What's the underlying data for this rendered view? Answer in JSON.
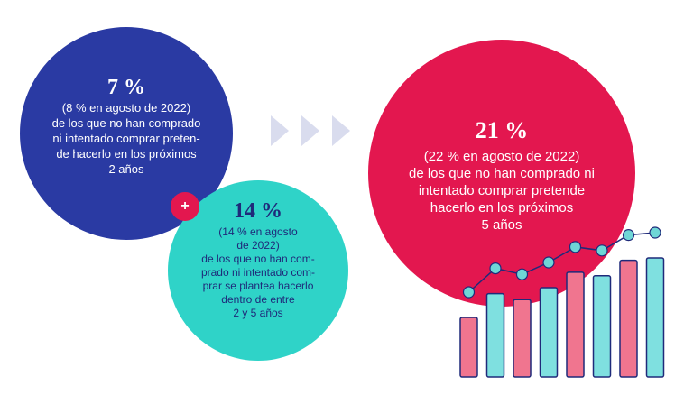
{
  "blue": {
    "pct": "7 %",
    "lines": [
      "(8 % en agosto de 2022)",
      "de los que no han comprado",
      "ni intentado comprar preten-",
      "de hacerlo en los próximos",
      "2 años"
    ],
    "color": "#2a3aa3"
  },
  "teal": {
    "pct": "14 %",
    "lines": [
      "(14 % en agosto",
      "de 2022)",
      "de los que no han com-",
      "prado ni intentado com-",
      "prar se plantea hacerlo",
      "dentro de entre",
      "2 y 5 años"
    ],
    "color": "#2fd3c8"
  },
  "pink": {
    "pct": "21 %",
    "lines": [
      "(22 % en agosto de 2022)",
      "de los que no han comprado ni",
      "intentado comprar pretende",
      "hacerlo en los próximos",
      "5 años"
    ],
    "color": "#e3174f"
  },
  "plus_symbol": "+",
  "decor": {
    "icons": [
      "chevron-right-icon",
      "bar-growth-illustration",
      "plus-icon"
    ],
    "bar_levels": [
      0.5,
      0.7,
      0.65,
      0.75,
      0.88,
      0.85,
      0.98,
      1.0
    ],
    "bar_colors": [
      "#f0758f",
      "#7fe0e0"
    ]
  }
}
